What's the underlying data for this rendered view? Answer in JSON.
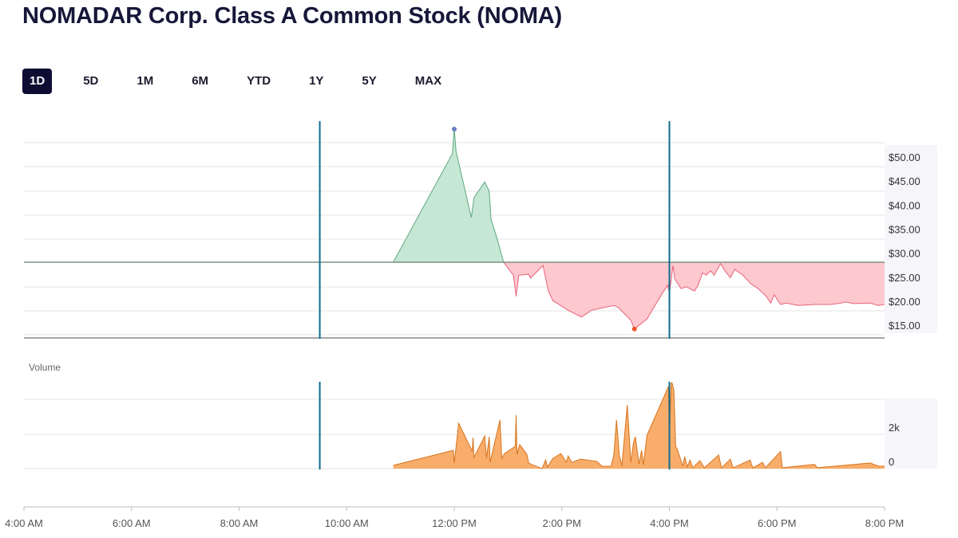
{
  "title": "NOMADAR Corp. Class A Common Stock (NOMA)",
  "tabs": [
    {
      "label": "1D",
      "active": true
    },
    {
      "label": "5D",
      "active": false
    },
    {
      "label": "1M",
      "active": false
    },
    {
      "label": "6M",
      "active": false
    },
    {
      "label": "YTD",
      "active": false
    },
    {
      "label": "1Y",
      "active": false
    },
    {
      "label": "5Y",
      "active": false
    },
    {
      "label": "MAX",
      "active": false
    }
  ],
  "colors": {
    "up_fill": "#c5e7d3",
    "up_line": "#5fa87d",
    "down_fill": "#fdc8ce",
    "down_line": "#e9637a",
    "volume_fill": "#f9ad6b",
    "volume_line": "#d8731c",
    "session_line": "#0e6c8f",
    "high_marker": "#6a7fc0",
    "low_marker": "#f2542d",
    "active_tab": "#0f0c33"
  },
  "chart_data": [
    {
      "type": "area",
      "series_kind": "price",
      "x_axis": {
        "range": [
          "04:00",
          "20:00"
        ],
        "tick_labels": [
          "4:00 AM",
          "6:00 AM",
          "8:00 AM",
          "10:00 AM",
          "12:00 PM",
          "2:00 PM",
          "4:00 PM",
          "6:00 PM",
          "8:00 PM"
        ]
      },
      "y_axis": {
        "position": "right",
        "ticks": [
          50,
          45,
          40,
          35,
          30,
          25,
          20,
          15
        ],
        "tick_labels": [
          "$50.00",
          "$45.00",
          "$40.00",
          "$35.00",
          "$30.00",
          "$25.00",
          "$20.00",
          "$15.00"
        ],
        "range": [
          13.5,
          55
        ]
      },
      "grid": true,
      "previous_close": 30.1,
      "session_markers": [
        "09:30",
        "16:00"
      ],
      "high": {
        "time": "12:00",
        "price": 57.8
      },
      "low": {
        "time": "15:21",
        "price": 16.2
      },
      "points": [
        [
          "10:52",
          30.1
        ],
        [
          "11:58",
          52.7
        ],
        [
          "12:00",
          57.8
        ],
        [
          "12:02",
          53.2
        ],
        [
          "12:19",
          39.4
        ],
        [
          "12:22",
          43.5
        ],
        [
          "12:34",
          46.8
        ],
        [
          "12:39",
          44.9
        ],
        [
          "12:41",
          39.1
        ],
        [
          "12:48",
          34.9
        ],
        [
          "12:55",
          30.1
        ],
        [
          "13:06",
          27.4
        ],
        [
          "13:09",
          23.0
        ],
        [
          "13:12",
          27.4
        ],
        [
          "13:23",
          27.6
        ],
        [
          "13:25",
          26.8
        ],
        [
          "13:39",
          29.4
        ],
        [
          "13:45",
          24.1
        ],
        [
          "13:50",
          22.1
        ],
        [
          "13:57",
          21.3
        ],
        [
          "14:07",
          20.1
        ],
        [
          "14:22",
          18.7
        ],
        [
          "14:33",
          20.1
        ],
        [
          "14:50",
          20.8
        ],
        [
          "14:59",
          21.1
        ],
        [
          "15:04",
          20.5
        ],
        [
          "15:17",
          18.0
        ],
        [
          "15:21",
          16.2
        ],
        [
          "15:35",
          18.3
        ],
        [
          "15:52",
          23.6
        ],
        [
          "15:58",
          25.3
        ],
        [
          "16:00",
          23.6
        ],
        [
          "16:04",
          29.4
        ],
        [
          "16:06",
          26.6
        ],
        [
          "16:13",
          24.6
        ],
        [
          "16:19",
          25.0
        ],
        [
          "16:28",
          24.1
        ],
        [
          "16:32",
          25.3
        ],
        [
          "16:37",
          27.9
        ],
        [
          "16:41",
          27.4
        ],
        [
          "16:46",
          28.3
        ],
        [
          "16:50",
          27.4
        ],
        [
          "16:55",
          29.1
        ],
        [
          "16:57",
          29.8
        ],
        [
          "17:02",
          28.3
        ],
        [
          "17:08",
          26.9
        ],
        [
          "17:13",
          28.6
        ],
        [
          "17:22",
          27.4
        ],
        [
          "17:31",
          25.6
        ],
        [
          "17:39",
          24.6
        ],
        [
          "17:48",
          23.0
        ],
        [
          "17:53",
          21.6
        ],
        [
          "17:57",
          23.3
        ],
        [
          "18:04",
          21.3
        ],
        [
          "18:10",
          21.6
        ],
        [
          "18:24",
          21.1
        ],
        [
          "18:42",
          21.3
        ],
        [
          "18:59",
          21.3
        ],
        [
          "19:08",
          21.5
        ],
        [
          "19:17",
          21.8
        ],
        [
          "19:26",
          21.5
        ],
        [
          "19:44",
          21.6
        ],
        [
          "19:53",
          21.1
        ],
        [
          "20:00",
          21.3
        ]
      ]
    },
    {
      "type": "area",
      "series_kind": "volume",
      "title": "Volume",
      "y_axis": {
        "position": "right",
        "ticks": [
          0,
          2000
        ],
        "tick_labels": [
          "0",
          "2k"
        ],
        "range": [
          0,
          5000
        ]
      },
      "grid": true,
      "points": [
        [
          "10:52",
          190
        ],
        [
          "11:59",
          1070
        ],
        [
          "12:00",
          330
        ],
        [
          "12:05",
          2650
        ],
        [
          "12:20",
          1020
        ],
        [
          "12:21",
          1810
        ],
        [
          "12:22",
          650
        ],
        [
          "12:34",
          1910
        ],
        [
          "12:36",
          600
        ],
        [
          "12:39",
          1860
        ],
        [
          "12:40",
          370
        ],
        [
          "12:51",
          2840
        ],
        [
          "12:53",
          600
        ],
        [
          "12:56",
          880
        ],
        [
          "13:08",
          1300
        ],
        [
          "13:09",
          3120
        ],
        [
          "13:10",
          840
        ],
        [
          "13:13",
          1400
        ],
        [
          "13:21",
          840
        ],
        [
          "13:23",
          330
        ],
        [
          "13:27",
          230
        ],
        [
          "13:38",
          0
        ],
        [
          "13:42",
          510
        ],
        [
          "13:44",
          90
        ],
        [
          "13:50",
          600
        ],
        [
          "13:59",
          880
        ],
        [
          "14:05",
          370
        ],
        [
          "14:07",
          740
        ],
        [
          "14:11",
          370
        ],
        [
          "14:21",
          560
        ],
        [
          "14:39",
          420
        ],
        [
          "14:45",
          140
        ],
        [
          "14:55",
          140
        ],
        [
          "14:58",
          790
        ],
        [
          "15:01",
          2840
        ],
        [
          "15:04",
          840
        ],
        [
          "15:07",
          140
        ],
        [
          "15:13",
          3720
        ],
        [
          "15:17",
          370
        ],
        [
          "15:20",
          1530
        ],
        [
          "15:22",
          1860
        ],
        [
          "15:26",
          280
        ],
        [
          "15:29",
          1070
        ],
        [
          "15:31",
          230
        ],
        [
          "15:35",
          1950
        ],
        [
          "15:59",
          4800
        ],
        [
          "16:00",
          1670
        ],
        [
          "16:02",
          5000
        ],
        [
          "16:03",
          5000
        ],
        [
          "16:05",
          4560
        ],
        [
          "16:07",
          1300
        ],
        [
          "16:09",
          1100
        ],
        [
          "16:15",
          140
        ],
        [
          "16:17",
          700
        ],
        [
          "16:20",
          100
        ],
        [
          "16:23",
          500
        ],
        [
          "16:26",
          50
        ],
        [
          "16:34",
          470
        ],
        [
          "16:39",
          50
        ],
        [
          "16:55",
          800
        ],
        [
          "16:58",
          50
        ],
        [
          "17:08",
          550
        ],
        [
          "17:11",
          50
        ],
        [
          "17:30",
          500
        ],
        [
          "17:33",
          50
        ],
        [
          "17:44",
          370
        ],
        [
          "17:47",
          50
        ],
        [
          "18:04",
          1000
        ],
        [
          "18:06",
          50
        ],
        [
          "18:42",
          250
        ],
        [
          "18:45",
          50
        ],
        [
          "19:44",
          330
        ],
        [
          "19:53",
          150
        ],
        [
          "20:00",
          140
        ]
      ]
    }
  ]
}
